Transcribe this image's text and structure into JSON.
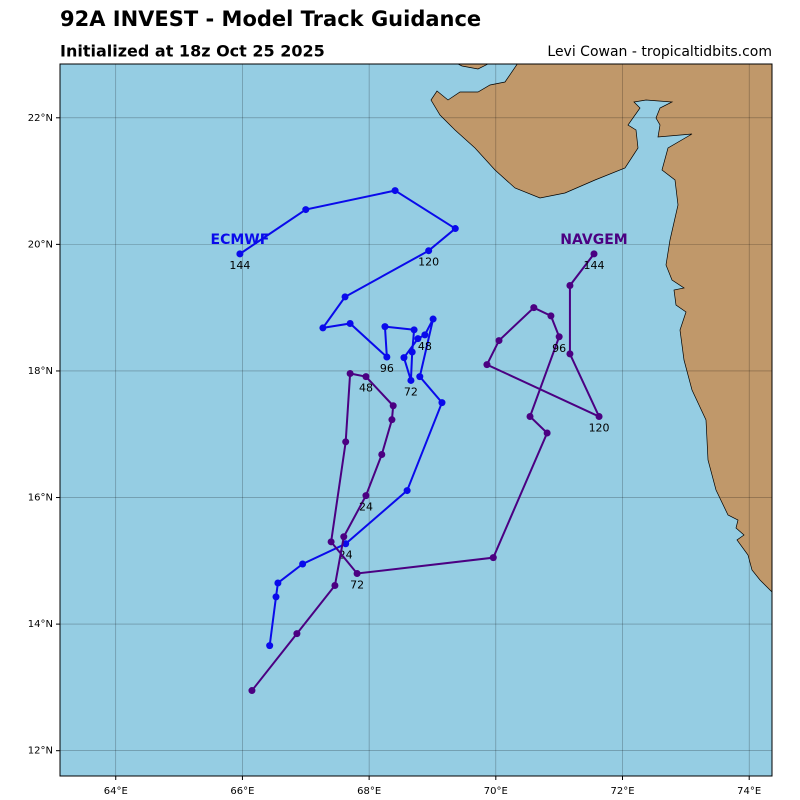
{
  "chart_data": {
    "type": "track",
    "title": "92A INVEST - Model Track Guidance",
    "subtitle": "Initialized at 18z Oct 25 2025",
    "credit": "Levi Cowan - tropicaltidbits.com",
    "xlim": [
      63.12,
      74.36
    ],
    "ylim": [
      11.6,
      22.85
    ],
    "xticks": [
      {
        "value": 64,
        "label": "64°E"
      },
      {
        "value": 66,
        "label": "66°E"
      },
      {
        "value": 68,
        "label": "68°E"
      },
      {
        "value": 70,
        "label": "70°E"
      },
      {
        "value": 72,
        "label": "72°E"
      },
      {
        "value": 74,
        "label": "74°E"
      }
    ],
    "yticks": [
      {
        "value": 12,
        "label": "12°N"
      },
      {
        "value": 14,
        "label": "14°N"
      },
      {
        "value": 16,
        "label": "16°N"
      },
      {
        "value": 18,
        "label": "18°N"
      },
      {
        "value": 20,
        "label": "20°N"
      },
      {
        "value": 22,
        "label": "22°N"
      }
    ],
    "grid": true,
    "series": [
      {
        "name": "ECMWF",
        "color": "#0a0aeb",
        "lon": [
          66.43,
          66.53,
          66.56,
          66.95,
          67.63,
          68.6,
          69.15,
          68.8,
          69.01,
          68.88,
          68.77,
          68.55,
          68.66,
          68.68,
          68.71,
          68.25,
          68.28,
          67.7,
          67.27,
          67.62,
          68.94,
          69.36,
          68.41,
          67.0,
          65.96
        ],
        "lat": [
          13.66,
          14.43,
          14.65,
          14.95,
          15.27,
          16.11,
          17.5,
          17.91,
          18.82,
          18.57,
          18.51,
          18.21,
          17.85,
          18.3,
          18.65,
          18.7,
          18.22,
          18.75,
          18.68,
          19.17,
          19.9,
          20.25,
          20.85,
          20.55,
          19.85
        ],
        "labels": [
          null,
          null,
          null,
          null,
          "24",
          null,
          null,
          null,
          null,
          "48",
          null,
          null,
          "72",
          null,
          null,
          null,
          "96",
          null,
          null,
          null,
          "120",
          null,
          null,
          null,
          "144"
        ]
      },
      {
        "name": "NAVGEM",
        "color": "#4b0082",
        "lon": [
          66.15,
          66.86,
          67.46,
          67.6,
          67.95,
          68.2,
          68.36,
          68.38,
          67.95,
          67.7,
          67.63,
          67.4,
          67.81,
          69.96,
          70.81,
          70.54,
          71.0,
          70.87,
          70.6,
          70.05,
          69.86,
          71.63,
          71.17,
          71.17,
          71.55
        ],
        "lat": [
          12.95,
          13.85,
          14.61,
          15.38,
          16.03,
          16.68,
          17.23,
          17.45,
          17.91,
          17.96,
          16.88,
          15.3,
          14.8,
          15.05,
          17.02,
          17.28,
          18.54,
          18.87,
          19.0,
          18.48,
          18.1,
          17.28,
          18.27,
          19.35,
          19.85
        ],
        "labels": [
          null,
          null,
          null,
          null,
          "24",
          null,
          null,
          null,
          "48",
          null,
          null,
          null,
          "72",
          null,
          null,
          null,
          "96",
          null,
          null,
          null,
          null,
          "120",
          null,
          null,
          "144"
        ]
      }
    ]
  }
}
